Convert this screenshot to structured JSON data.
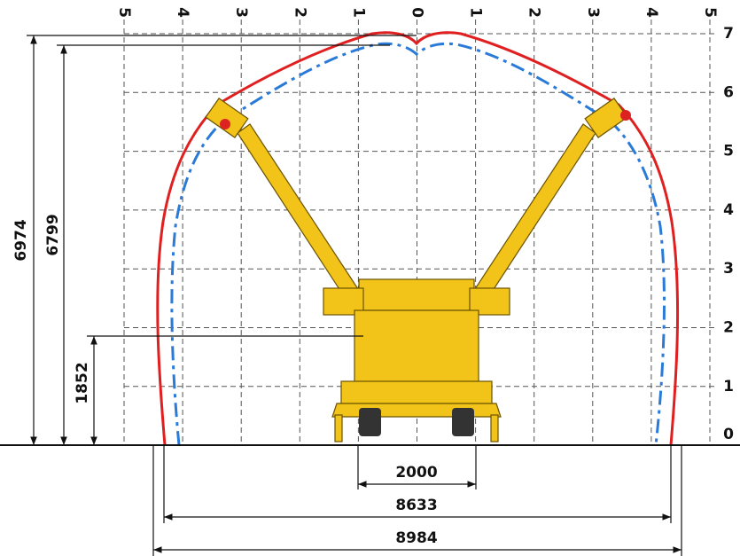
{
  "top_scale": [
    5,
    4,
    3,
    2,
    1,
    0,
    1,
    2,
    3,
    4,
    5
  ],
  "side_scale": [
    7,
    6,
    5,
    4,
    3,
    2,
    1,
    0
  ],
  "dimensions": {
    "height_max": 6974,
    "height_inner": 6799,
    "height_low": 1852,
    "width_center": 2000,
    "width_inner": 8633,
    "width_outer": 8984
  }
}
